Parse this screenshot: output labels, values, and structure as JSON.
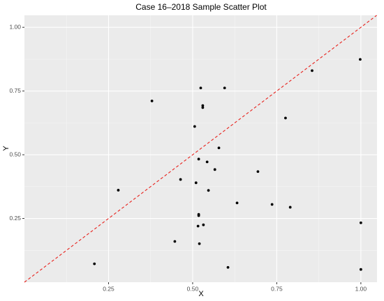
{
  "chart_data": {
    "type": "scatter",
    "title": "Case 16–2018 Sample Scatter Plot",
    "x_label": "X",
    "y_label": "Y",
    "x": [
      0.208,
      0.279,
      0.379,
      0.447,
      0.464,
      0.506,
      0.51,
      0.516,
      0.518,
      0.518,
      0.518,
      0.52,
      0.524,
      0.53,
      0.53,
      0.532,
      0.543,
      0.547,
      0.566,
      0.578,
      0.595,
      0.605,
      0.632,
      0.694,
      0.736,
      0.776,
      0.79,
      0.855,
      0.998,
      1.0,
      1.0
    ],
    "values": [
      0.072,
      0.361,
      0.711,
      0.16,
      0.403,
      0.611,
      0.39,
      0.22,
      0.483,
      0.266,
      0.261,
      0.151,
      0.762,
      0.693,
      0.685,
      0.225,
      0.472,
      0.36,
      0.442,
      0.527,
      0.762,
      0.058,
      0.311,
      0.434,
      0.305,
      0.644,
      0.294,
      0.83,
      0.874,
      0.233,
      0.05
    ],
    "color": "#000000",
    "xlim": [
      0,
      1.048
    ],
    "ylim": [
      0,
      1.047
    ],
    "xticks": [
      {
        "value": 0.25,
        "label": "0.25"
      },
      {
        "value": 0.5,
        "label": "0.50"
      },
      {
        "value": 0.75,
        "label": "0.75"
      },
      {
        "value": 1,
        "label": "1.00"
      }
    ],
    "yticks": [
      {
        "value": 0.25,
        "label": "0.25"
      },
      {
        "value": 0.5,
        "label": "0.50"
      },
      {
        "value": 0.75,
        "label": "0.75"
      },
      {
        "value": 1,
        "label": "1.00"
      }
    ],
    "grid": true,
    "diagonal": true,
    "diagonal_color": "#e8211c"
  }
}
